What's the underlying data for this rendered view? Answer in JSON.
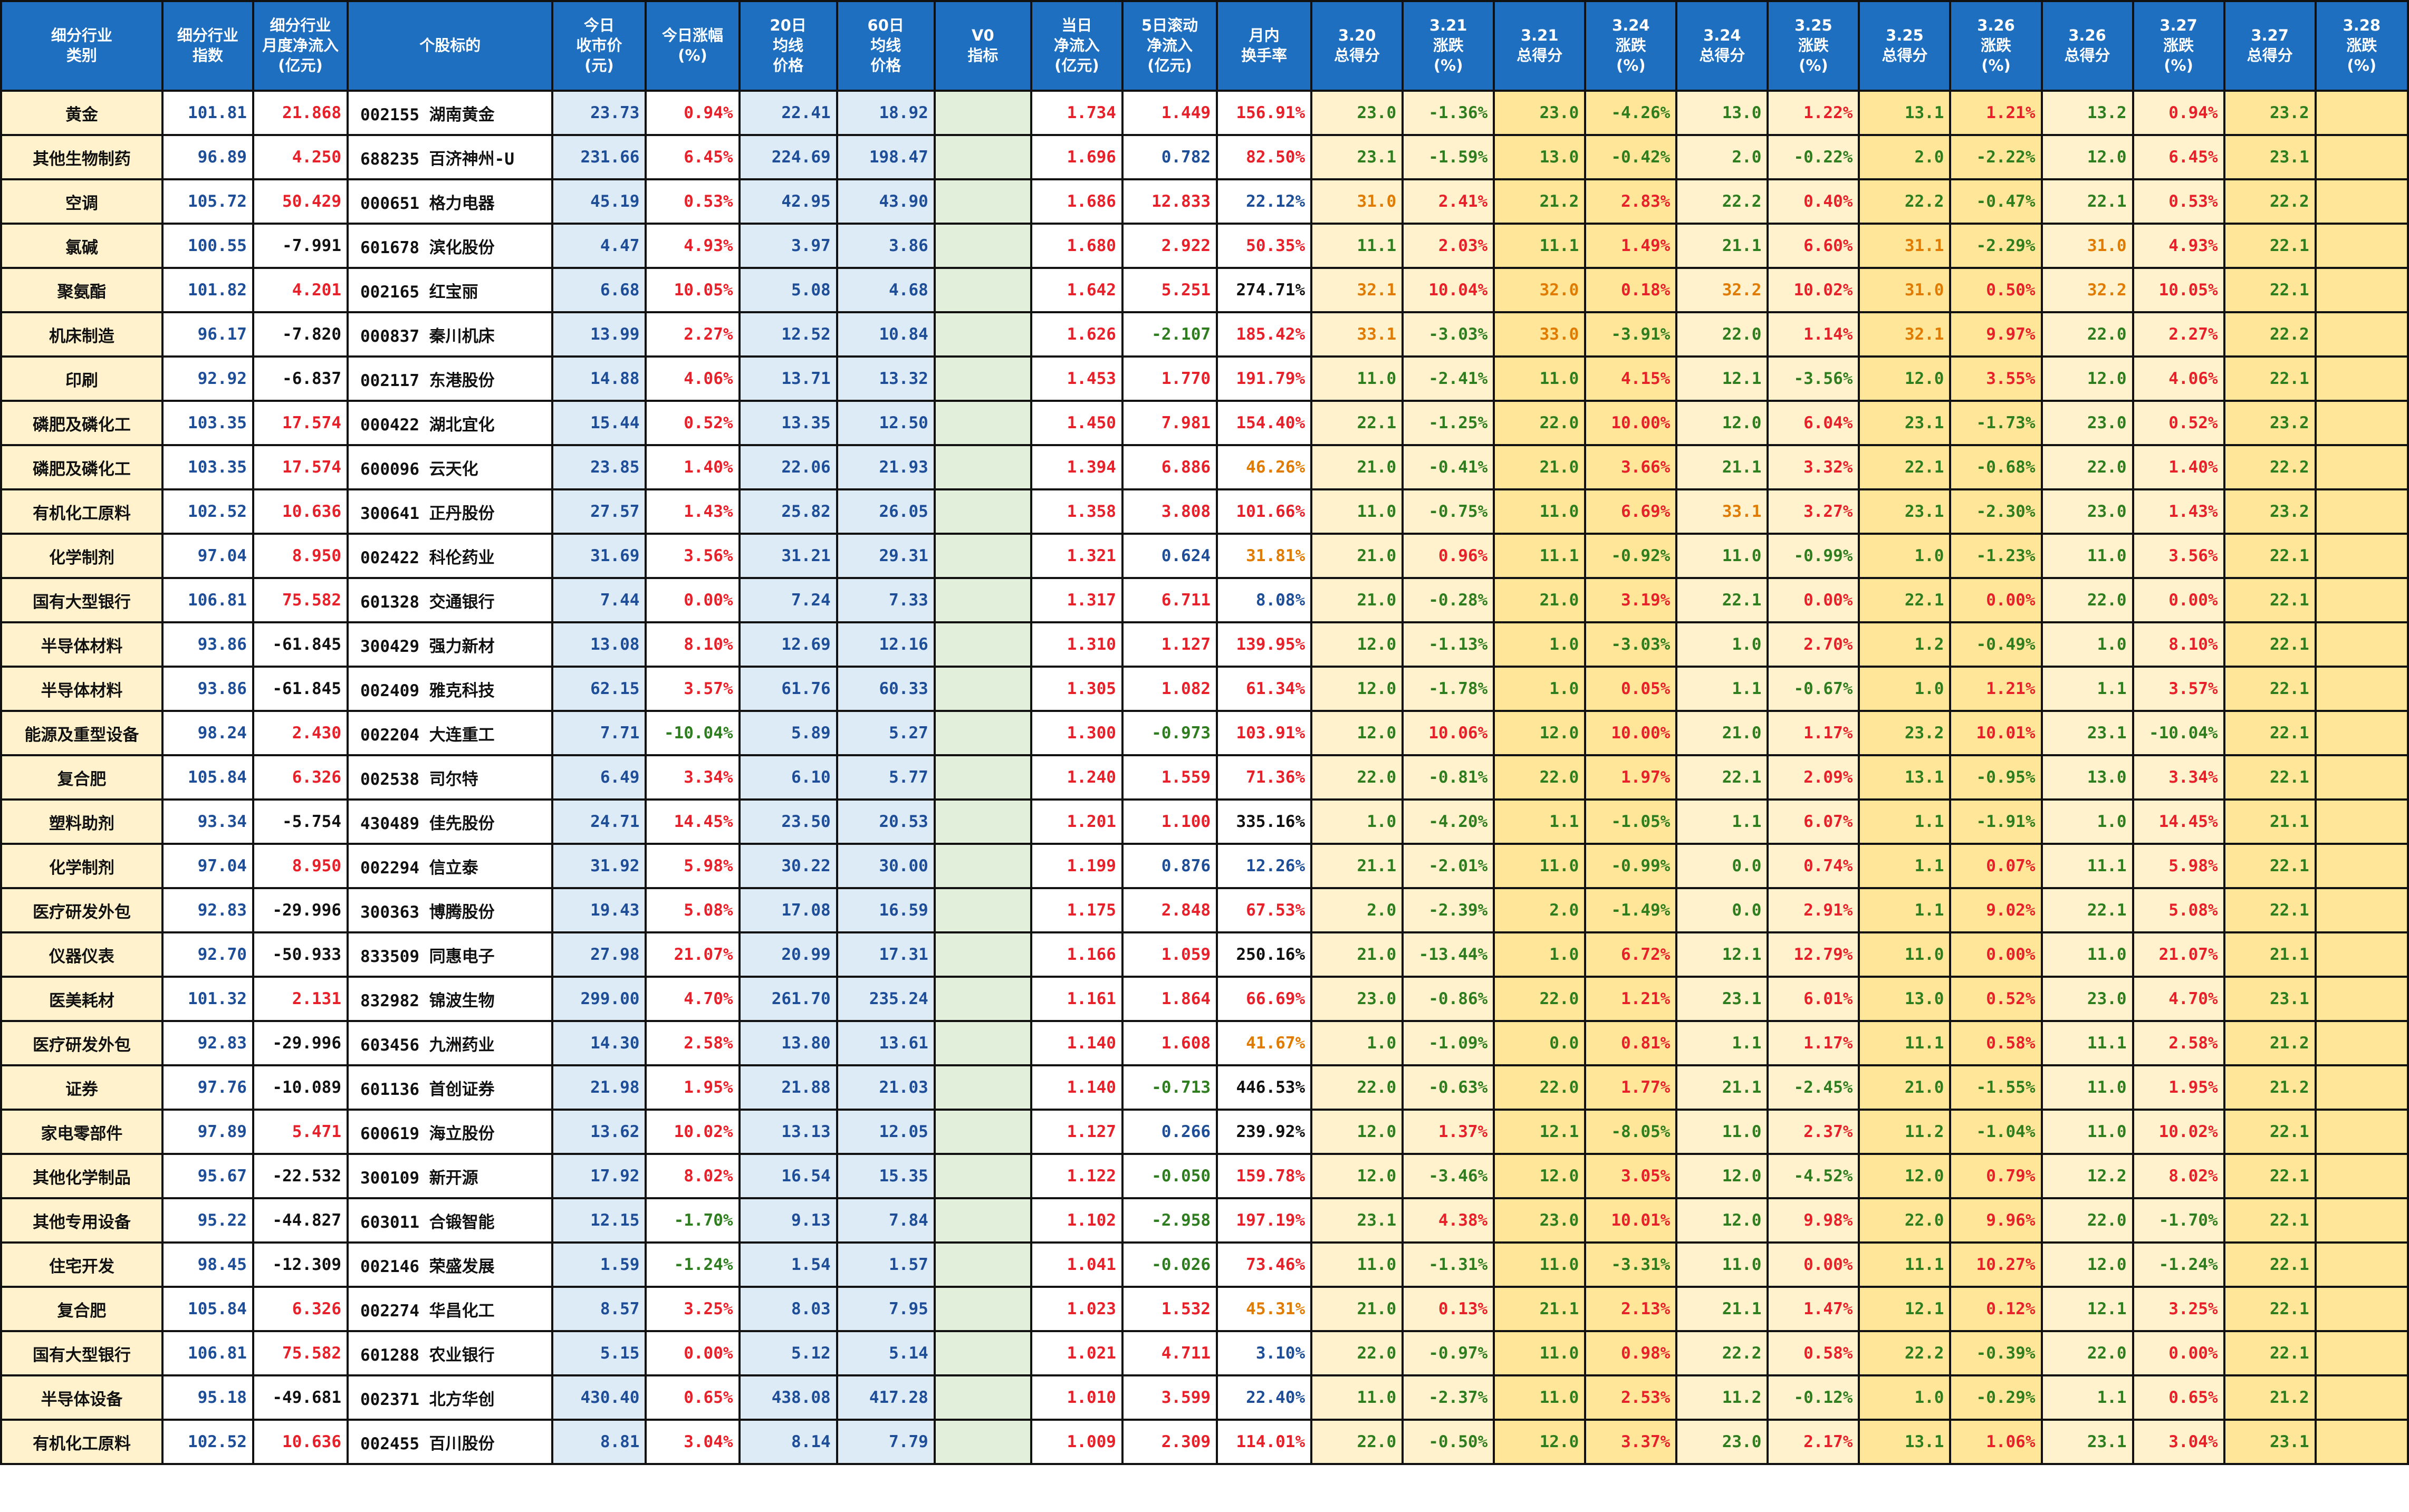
{
  "colors": {
    "header_bg": "#1f6fc1",
    "header_text": "#ffffff",
    "industry_bg": "#fff2cc",
    "blue_bg": "#ddebf7",
    "green_bg": "#e2efda",
    "peach_bg": "#fff2cc",
    "yellow_bg": "#ffe699",
    "text_blue": "#1f4e99",
    "text_red": "#e8202a",
    "text_green": "#2e7d1e",
    "text_orange": "#e07b00"
  },
  "headers": [
    [
      "细分行业",
      "类别"
    ],
    [
      "细分行业",
      "指数"
    ],
    [
      "细分行业",
      "月度净流入",
      "(亿元)"
    ],
    [
      "个股标的"
    ],
    [
      "今日",
      "收市价",
      "(元)"
    ],
    [
      "今日涨幅",
      "(%)"
    ],
    [
      "20日",
      "均线",
      "价格"
    ],
    [
      "60日",
      "均线",
      "价格"
    ],
    [
      "V0",
      "指标"
    ],
    [
      "当日",
      "净流入",
      "(亿元)"
    ],
    [
      "5日滚动",
      "净流入",
      "(亿元)"
    ],
    [
      "月内",
      "换手率"
    ],
    [
      "3.20",
      "总得分"
    ],
    [
      "3.21",
      "涨跌",
      "(%)"
    ],
    [
      "3.21",
      "总得分"
    ],
    [
      "3.24",
      "涨跌",
      "(%)"
    ],
    [
      "3.24",
      "总得分"
    ],
    [
      "3.25",
      "涨跌",
      "(%)"
    ],
    [
      "3.25",
      "总得分"
    ],
    [
      "3.26",
      "涨跌",
      "(%)"
    ],
    [
      "3.26",
      "总得分"
    ],
    [
      "3.27",
      "涨跌",
      "(%)"
    ],
    [
      "3.27",
      "总得分"
    ],
    [
      "3.28",
      "涨跌",
      "(%)"
    ]
  ],
  "rows": [
    [
      "黄金",
      "101.81",
      "21.868",
      "002155 湖南黄金",
      "23.73",
      "0.94%",
      "22.41",
      "18.92",
      "",
      "1.734",
      "1.449",
      "156.91%",
      "23.0",
      "-1.36%",
      "23.0",
      "-4.26%",
      "13.0",
      "1.22%",
      "13.1",
      "1.21%",
      "13.2",
      "0.94%",
      "23.2",
      ""
    ],
    [
      "其他生物制药",
      "96.89",
      "4.250",
      "688235 百济神州-U",
      "231.66",
      "6.45%",
      "224.69",
      "198.47",
      "",
      "1.696",
      "0.782",
      "82.50%",
      "23.1",
      "-1.59%",
      "13.0",
      "-0.42%",
      "2.0",
      "-0.22%",
      "2.0",
      "-2.22%",
      "12.0",
      "6.45%",
      "23.1",
      ""
    ],
    [
      "空调",
      "105.72",
      "50.429",
      "000651 格力电器",
      "45.19",
      "0.53%",
      "42.95",
      "43.90",
      "",
      "1.686",
      "12.833",
      "22.12%",
      "31.0",
      "2.41%",
      "21.2",
      "2.83%",
      "22.2",
      "0.40%",
      "22.2",
      "-0.47%",
      "22.1",
      "0.53%",
      "22.2",
      ""
    ],
    [
      "氯碱",
      "100.55",
      "-7.991",
      "601678 滨化股份",
      "4.47",
      "4.93%",
      "3.97",
      "3.86",
      "",
      "1.680",
      "2.922",
      "50.35%",
      "11.1",
      "2.03%",
      "11.1",
      "1.49%",
      "21.1",
      "6.60%",
      "31.1",
      "-2.29%",
      "31.0",
      "4.93%",
      "22.1",
      ""
    ],
    [
      "聚氨酯",
      "101.82",
      "4.201",
      "002165 红宝丽",
      "6.68",
      "10.05%",
      "5.08",
      "4.68",
      "",
      "1.642",
      "5.251",
      "274.71%",
      "32.1",
      "10.04%",
      "32.0",
      "0.18%",
      "32.2",
      "10.02%",
      "31.0",
      "0.50%",
      "32.2",
      "10.05%",
      "22.1",
      ""
    ],
    [
      "机床制造",
      "96.17",
      "-7.820",
      "000837 秦川机床",
      "13.99",
      "2.27%",
      "12.52",
      "10.84",
      "",
      "1.626",
      "-2.107",
      "185.42%",
      "33.1",
      "-3.03%",
      "33.0",
      "-3.91%",
      "22.0",
      "1.14%",
      "32.1",
      "9.97%",
      "22.0",
      "2.27%",
      "22.2",
      ""
    ],
    [
      "印刷",
      "92.92",
      "-6.837",
      "002117 东港股份",
      "14.88",
      "4.06%",
      "13.71",
      "13.32",
      "",
      "1.453",
      "1.770",
      "191.79%",
      "11.0",
      "-2.41%",
      "11.0",
      "4.15%",
      "12.1",
      "-3.56%",
      "12.0",
      "3.55%",
      "12.0",
      "4.06%",
      "22.1",
      ""
    ],
    [
      "磷肥及磷化工",
      "103.35",
      "17.574",
      "000422 湖北宜化",
      "15.44",
      "0.52%",
      "13.35",
      "12.50",
      "",
      "1.450",
      "7.981",
      "154.40%",
      "22.1",
      "-1.25%",
      "22.0",
      "10.00%",
      "12.0",
      "6.04%",
      "23.1",
      "-1.73%",
      "23.0",
      "0.52%",
      "23.2",
      ""
    ],
    [
      "磷肥及磷化工",
      "103.35",
      "17.574",
      "600096 云天化",
      "23.85",
      "1.40%",
      "22.06",
      "21.93",
      "",
      "1.394",
      "6.886",
      "46.26%",
      "21.0",
      "-0.41%",
      "21.0",
      "3.66%",
      "21.1",
      "3.32%",
      "22.1",
      "-0.68%",
      "22.0",
      "1.40%",
      "22.2",
      ""
    ],
    [
      "有机化工原料",
      "102.52",
      "10.636",
      "300641 正丹股份",
      "27.57",
      "1.43%",
      "25.82",
      "26.05",
      "",
      "1.358",
      "3.808",
      "101.66%",
      "11.0",
      "-0.75%",
      "11.0",
      "6.69%",
      "33.1",
      "3.27%",
      "23.1",
      "-2.30%",
      "23.0",
      "1.43%",
      "23.2",
      ""
    ],
    [
      "化学制剂",
      "97.04",
      "8.950",
      "002422 科伦药业",
      "31.69",
      "3.56%",
      "31.21",
      "29.31",
      "",
      "1.321",
      "0.624",
      "31.81%",
      "21.0",
      "0.96%",
      "11.1",
      "-0.92%",
      "11.0",
      "-0.99%",
      "1.0",
      "-1.23%",
      "11.0",
      "3.56%",
      "22.1",
      ""
    ],
    [
      "国有大型银行",
      "106.81",
      "75.582",
      "601328 交通银行",
      "7.44",
      "0.00%",
      "7.24",
      "7.33",
      "",
      "1.317",
      "6.711",
      "8.08%",
      "21.0",
      "-0.28%",
      "21.0",
      "3.19%",
      "22.1",
      "0.00%",
      "22.1",
      "0.00%",
      "22.0",
      "0.00%",
      "22.1",
      ""
    ],
    [
      "半导体材料",
      "93.86",
      "-61.845",
      "300429 强力新材",
      "13.08",
      "8.10%",
      "12.69",
      "12.16",
      "",
      "1.310",
      "1.127",
      "139.95%",
      "12.0",
      "-1.13%",
      "1.0",
      "-3.03%",
      "1.0",
      "2.70%",
      "1.2",
      "-0.49%",
      "1.0",
      "8.10%",
      "22.1",
      ""
    ],
    [
      "半导体材料",
      "93.86",
      "-61.845",
      "002409 雅克科技",
      "62.15",
      "3.57%",
      "61.76",
      "60.33",
      "",
      "1.305",
      "1.082",
      "61.34%",
      "12.0",
      "-1.78%",
      "1.0",
      "0.05%",
      "1.1",
      "-0.67%",
      "1.0",
      "1.21%",
      "1.1",
      "3.57%",
      "22.1",
      ""
    ],
    [
      "能源及重型设备",
      "98.24",
      "2.430",
      "002204 大连重工",
      "7.71",
      "-10.04%",
      "5.89",
      "5.27",
      "",
      "1.300",
      "-0.973",
      "103.91%",
      "12.0",
      "10.06%",
      "12.0",
      "10.00%",
      "21.0",
      "1.17%",
      "23.2",
      "10.01%",
      "23.1",
      "-10.04%",
      "22.1",
      ""
    ],
    [
      "复合肥",
      "105.84",
      "6.326",
      "002538 司尔特",
      "6.49",
      "3.34%",
      "6.10",
      "5.77",
      "",
      "1.240",
      "1.559",
      "71.36%",
      "22.0",
      "-0.81%",
      "22.0",
      "1.97%",
      "22.1",
      "2.09%",
      "13.1",
      "-0.95%",
      "13.0",
      "3.34%",
      "22.1",
      ""
    ],
    [
      "塑料助剂",
      "93.34",
      "-5.754",
      "430489 佳先股份",
      "24.71",
      "14.45%",
      "23.50",
      "20.53",
      "",
      "1.201",
      "1.100",
      "335.16%",
      "1.0",
      "-4.20%",
      "1.1",
      "-1.05%",
      "1.1",
      "6.07%",
      "1.1",
      "-1.91%",
      "1.0",
      "14.45%",
      "21.1",
      ""
    ],
    [
      "化学制剂",
      "97.04",
      "8.950",
      "002294 信立泰",
      "31.92",
      "5.98%",
      "30.22",
      "30.00",
      "",
      "1.199",
      "0.876",
      "12.26%",
      "21.1",
      "-2.01%",
      "11.0",
      "-0.99%",
      "0.0",
      "0.74%",
      "1.1",
      "0.07%",
      "11.1",
      "5.98%",
      "22.1",
      ""
    ],
    [
      "医疗研发外包",
      "92.83",
      "-29.996",
      "300363 博腾股份",
      "19.43",
      "5.08%",
      "17.08",
      "16.59",
      "",
      "1.175",
      "2.848",
      "67.53%",
      "2.0",
      "-2.39%",
      "2.0",
      "-1.49%",
      "0.0",
      "2.91%",
      "1.1",
      "9.02%",
      "22.1",
      "5.08%",
      "22.1",
      ""
    ],
    [
      "仪器仪表",
      "92.70",
      "-50.933",
      "833509 同惠电子",
      "27.98",
      "21.07%",
      "20.99",
      "17.31",
      "",
      "1.166",
      "1.059",
      "250.16%",
      "21.0",
      "-13.44%",
      "1.0",
      "6.72%",
      "12.1",
      "12.79%",
      "11.0",
      "0.00%",
      "11.0",
      "21.07%",
      "21.1",
      ""
    ],
    [
      "医美耗材",
      "101.32",
      "2.131",
      "832982 锦波生物",
      "299.00",
      "4.70%",
      "261.70",
      "235.24",
      "",
      "1.161",
      "1.864",
      "66.69%",
      "23.0",
      "-0.86%",
      "22.0",
      "1.21%",
      "23.1",
      "6.01%",
      "13.0",
      "0.52%",
      "23.0",
      "4.70%",
      "23.1",
      ""
    ],
    [
      "医疗研发外包",
      "92.83",
      "-29.996",
      "603456 九洲药业",
      "14.30",
      "2.58%",
      "13.80",
      "13.61",
      "",
      "1.140",
      "1.608",
      "41.67%",
      "1.0",
      "-1.09%",
      "0.0",
      "0.81%",
      "1.1",
      "1.17%",
      "11.1",
      "0.58%",
      "11.1",
      "2.58%",
      "21.2",
      ""
    ],
    [
      "证券",
      "97.76",
      "-10.089",
      "601136 首创证券",
      "21.98",
      "1.95%",
      "21.88",
      "21.03",
      "",
      "1.140",
      "-0.713",
      "446.53%",
      "22.0",
      "-0.63%",
      "22.0",
      "1.77%",
      "21.1",
      "-2.45%",
      "21.0",
      "-1.55%",
      "11.0",
      "1.95%",
      "21.2",
      ""
    ],
    [
      "家电零部件",
      "97.89",
      "5.471",
      "600619 海立股份",
      "13.62",
      "10.02%",
      "13.13",
      "12.05",
      "",
      "1.127",
      "0.266",
      "239.92%",
      "12.0",
      "1.37%",
      "12.1",
      "-8.05%",
      "11.0",
      "2.37%",
      "11.2",
      "-1.04%",
      "11.0",
      "10.02%",
      "22.1",
      ""
    ],
    [
      "其他化学制品",
      "95.67",
      "-22.532",
      "300109 新开源",
      "17.92",
      "8.02%",
      "16.54",
      "15.35",
      "",
      "1.122",
      "-0.050",
      "159.78%",
      "12.0",
      "-3.46%",
      "12.0",
      "3.05%",
      "12.0",
      "-4.52%",
      "12.0",
      "0.79%",
      "12.2",
      "8.02%",
      "22.1",
      ""
    ],
    [
      "其他专用设备",
      "95.22",
      "-44.827",
      "603011 合锻智能",
      "12.15",
      "-1.70%",
      "9.13",
      "7.84",
      "",
      "1.102",
      "-2.958",
      "197.19%",
      "23.1",
      "4.38%",
      "23.0",
      "10.01%",
      "12.0",
      "9.98%",
      "22.0",
      "9.96%",
      "22.0",
      "-1.70%",
      "22.1",
      ""
    ],
    [
      "住宅开发",
      "98.45",
      "-12.309",
      "002146 荣盛发展",
      "1.59",
      "-1.24%",
      "1.54",
      "1.57",
      "",
      "1.041",
      "-0.026",
      "73.46%",
      "11.0",
      "-1.31%",
      "11.0",
      "-3.31%",
      "11.0",
      "0.00%",
      "11.1",
      "10.27%",
      "12.0",
      "-1.24%",
      "22.1",
      ""
    ],
    [
      "复合肥",
      "105.84",
      "6.326",
      "002274 华昌化工",
      "8.57",
      "3.25%",
      "8.03",
      "7.95",
      "",
      "1.023",
      "1.532",
      "45.31%",
      "21.0",
      "0.13%",
      "21.1",
      "2.13%",
      "21.1",
      "1.47%",
      "12.1",
      "0.12%",
      "12.1",
      "3.25%",
      "22.1",
      ""
    ],
    [
      "国有大型银行",
      "106.81",
      "75.582",
      "601288 农业银行",
      "5.15",
      "0.00%",
      "5.12",
      "5.14",
      "",
      "1.021",
      "4.711",
      "3.10%",
      "22.0",
      "-0.97%",
      "11.0",
      "0.98%",
      "22.2",
      "0.58%",
      "22.2",
      "-0.39%",
      "22.0",
      "0.00%",
      "22.1",
      ""
    ],
    [
      "半导体设备",
      "95.18",
      "-49.681",
      "002371 北方华创",
      "430.40",
      "0.65%",
      "438.08",
      "417.28",
      "",
      "1.010",
      "3.599",
      "22.40%",
      "11.0",
      "-2.37%",
      "11.0",
      "2.53%",
      "11.2",
      "-0.12%",
      "1.0",
      "-0.29%",
      "1.1",
      "0.65%",
      "21.2",
      ""
    ],
    [
      "有机化工原料",
      "102.52",
      "10.636",
      "002455 百川股份",
      "8.81",
      "3.04%",
      "8.14",
      "7.79",
      "",
      "1.009",
      "2.309",
      "114.01%",
      "22.0",
      "-0.50%",
      "12.0",
      "3.37%",
      "23.0",
      "2.17%",
      "13.1",
      "1.06%",
      "23.1",
      "3.04%",
      "23.1",
      ""
    ]
  ]
}
